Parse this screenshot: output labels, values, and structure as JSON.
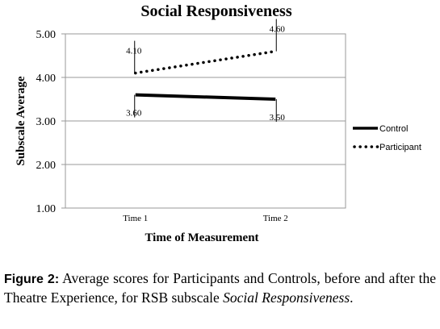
{
  "chart_data": {
    "type": "line",
    "title": "Social Responsiveness",
    "xlabel": "Time of Measurement",
    "ylabel": "Subscale Average",
    "categories": [
      "Time 1",
      "Time 2"
    ],
    "ylim": [
      1.0,
      5.0
    ],
    "yticks": [
      "1.00",
      "2.00",
      "3.00",
      "4.00",
      "5.00"
    ],
    "grid": true,
    "legend": "right",
    "series": [
      {
        "name": "Control",
        "values": [
          3.6,
          3.5
        ],
        "labels": [
          "3.60",
          "3.50"
        ],
        "style": "solid",
        "color": "#000000"
      },
      {
        "name": "Participant",
        "values": [
          4.1,
          4.6
        ],
        "labels": [
          "4.10",
          "4.60"
        ],
        "style": "dotted",
        "color": "#000000"
      }
    ]
  },
  "caption": {
    "label": "Figure 2:",
    "text": " Average scores for Participants and Controls, before and after the Theatre Experience, for RSB subscale ",
    "italic": "Social Responsiveness",
    "end": "."
  }
}
